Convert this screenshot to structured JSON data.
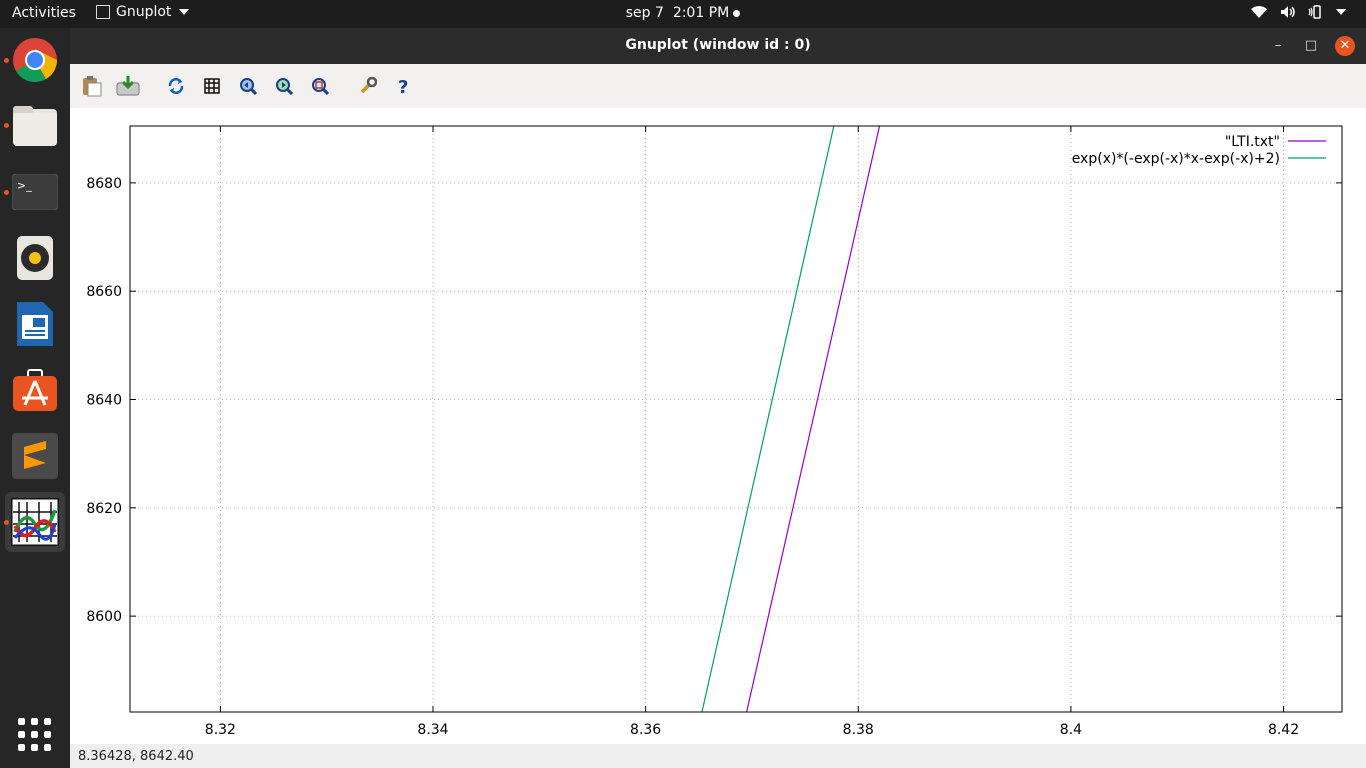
{
  "topbar": {
    "activities": "Activities",
    "app_name": "Gnuplot",
    "date": "sep 7",
    "time": "2:01 PM",
    "tray_icons": [
      "wifi-icon",
      "volume-icon",
      "battery-icon",
      "system-menu-caret"
    ]
  },
  "dock": {
    "items": [
      {
        "name": "chrome",
        "running": true
      },
      {
        "name": "files",
        "running": true
      },
      {
        "name": "terminal",
        "running": true
      },
      {
        "name": "rhythmbox",
        "running": false
      },
      {
        "name": "libreoffice-writer",
        "running": false
      },
      {
        "name": "software-center",
        "running": false
      },
      {
        "name": "sublime-text",
        "running": false
      },
      {
        "name": "gnuplot",
        "running": true,
        "active": true
      }
    ]
  },
  "window": {
    "title": "Gnuplot (window id : 0)"
  },
  "toolbar": {
    "buttons": [
      "copy-to-clipboard",
      "export",
      "replot",
      "toggle-grid",
      "previous-zoom",
      "next-zoom",
      "autoscale",
      "preferences",
      "help"
    ]
  },
  "colors": {
    "series1": "#9400d3",
    "series2": "#009e73",
    "accent": "#e95420"
  },
  "chart_data": {
    "type": "line",
    "xlim": [
      8.3115,
      8.4255
    ],
    "ylim": [
      8582.3,
      8690.5
    ],
    "xticks": [
      8.32,
      8.34,
      8.36,
      8.38,
      8.4,
      8.42
    ],
    "xtick_labels": [
      "8.32",
      "8.34",
      "8.36",
      "8.38",
      "8.4",
      "8.42"
    ],
    "yticks": [
      8600,
      8620,
      8640,
      8660,
      8680
    ],
    "ytick_labels": [
      "8600",
      "8620",
      "8640",
      "8660",
      "8680"
    ],
    "grid": true,
    "legend_position": "top-right",
    "series": [
      {
        "name": "\"LTI.txt\"",
        "color": "#9400d3",
        "x": [
          8.3695,
          8.382
        ],
        "y": [
          8582.3,
          8690.5
        ]
      },
      {
        "name": "exp(x)*(-exp(-x)*x-exp(-x)+2)",
        "color": "#009e73",
        "x": [
          8.3653,
          8.3777
        ],
        "y": [
          8582.3,
          8690.5
        ]
      }
    ]
  },
  "status": {
    "coords": "8.36428,  8642.40"
  }
}
